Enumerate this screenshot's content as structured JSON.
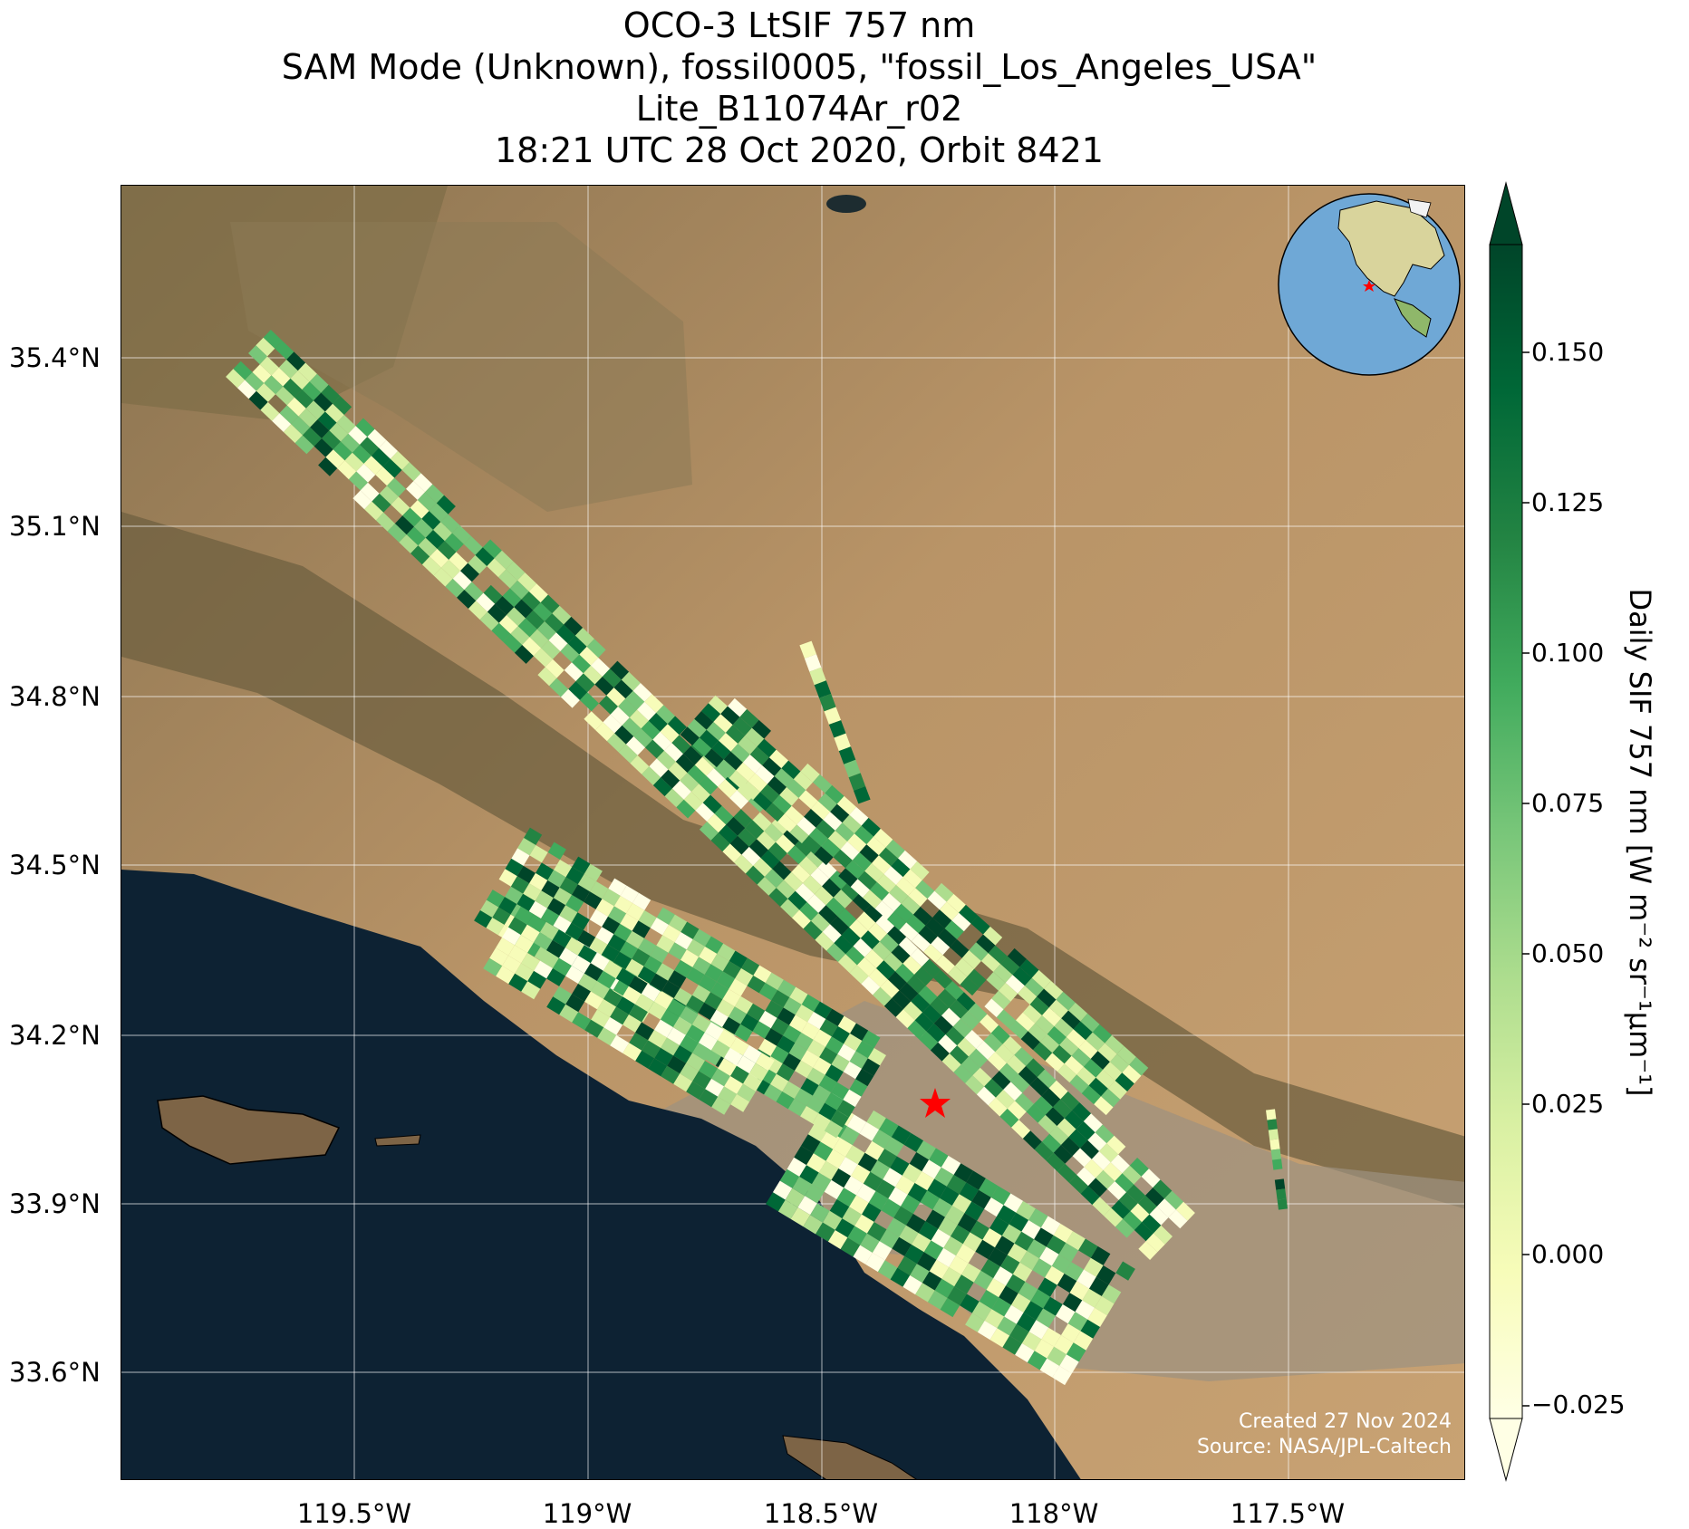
{
  "title": {
    "line1": "OCO-3 LtSIF 757 nm",
    "line2": "SAM Mode (Unknown), fossil0005, \"fossil_Los_Angeles_USA\"",
    "line3": "Lite_B11074Ar_r02",
    "line4": "18:21 UTC 28 Oct 2020, Orbit 8421"
  },
  "map": {
    "lat_ticks": [
      "35.4°N",
      "35.1°N",
      "34.8°N",
      "34.5°N",
      "34.2°N",
      "33.9°N",
      "33.6°N"
    ],
    "lon_ticks": [
      "119.5°W",
      "119°W",
      "118.5°W",
      "118°W",
      "117.5°W"
    ],
    "target_marker": "red-star-icon",
    "target_color": "#ff0000",
    "land_color": "#b58f63",
    "ocean_color": "#0d2233",
    "credit_line1": "Created 27 Nov 2024",
    "credit_line2": "Source: NASA/JPL-Caltech"
  },
  "colorbar": {
    "label": "Daily SIF 757 nm [W m⁻² sr⁻¹μm⁻¹]",
    "ticks": [
      "0.150",
      "0.125",
      "0.100",
      "0.075",
      "0.050",
      "0.025",
      "0.000",
      "−0.025"
    ],
    "colormap": [
      "#ffffe5",
      "#f7fcb9",
      "#d9f0a3",
      "#addd8e",
      "#78c679",
      "#41ab5d",
      "#238443",
      "#006837",
      "#004529"
    ]
  },
  "inset": {
    "type": "globe",
    "ocean_color": "#6fa8d6",
    "marker": "red-star-icon"
  }
}
